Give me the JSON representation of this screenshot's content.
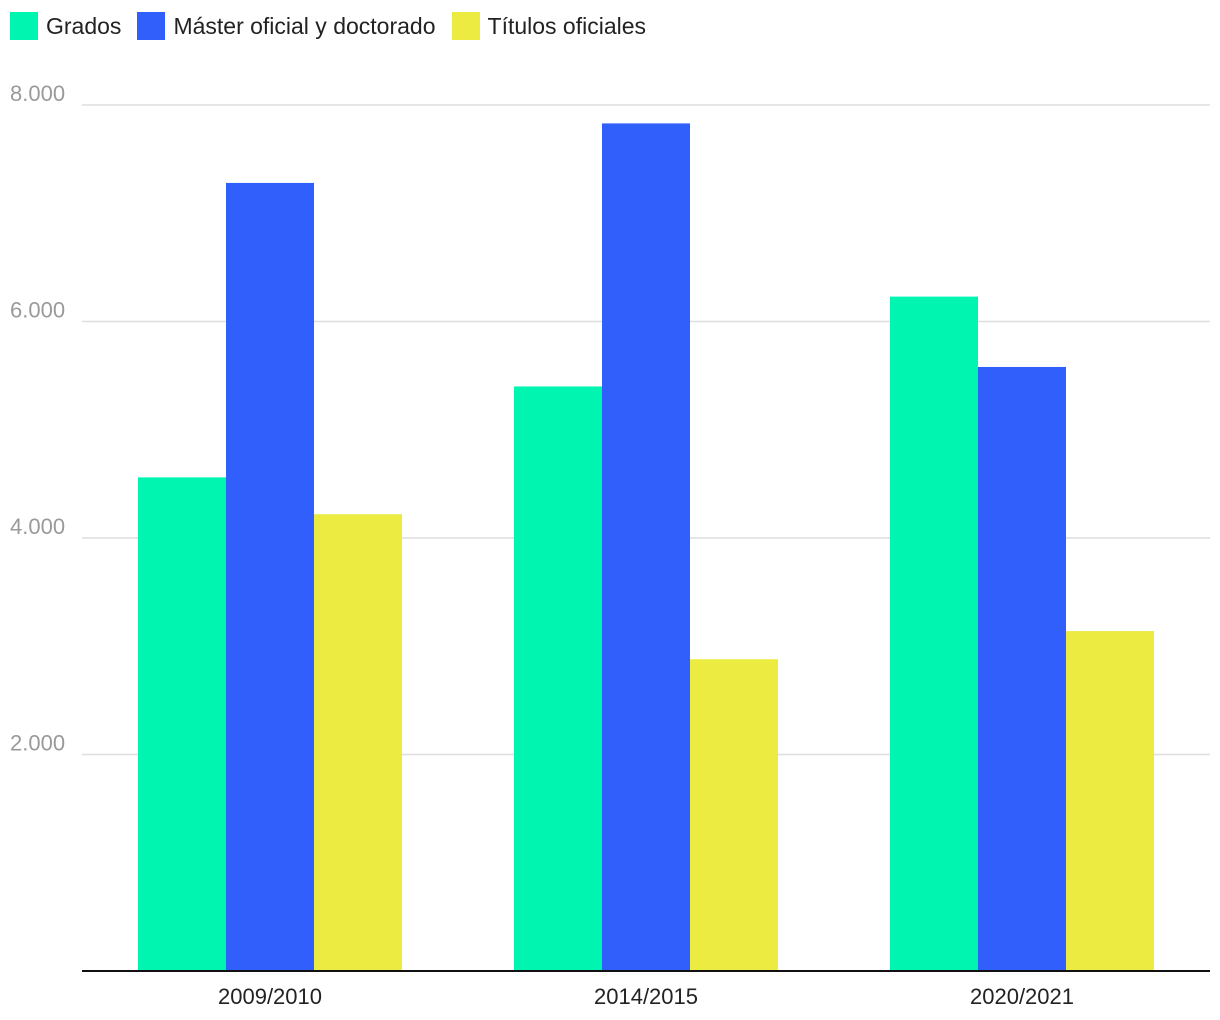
{
  "chart_data": {
    "type": "bar",
    "title": "",
    "xlabel": "",
    "ylabel": "",
    "categories": [
      "2009/2010",
      "2014/2015",
      "2020/2021"
    ],
    "series": [
      {
        "name": "Grados",
        "color": "#00f5b0",
        "values": [
          4560,
          5400,
          6230
        ]
      },
      {
        "name": "Máster oficial y doctorado",
        "color": "#315ffb",
        "values": [
          7280,
          7830,
          5580
        ]
      },
      {
        "name": "Títulos oficiales",
        "color": "#ebeb41",
        "values": [
          4220,
          2880,
          3140
        ]
      }
    ],
    "yticks": [
      {
        "value": 2000,
        "label": "2.000"
      },
      {
        "value": 4000,
        "label": "4.000"
      },
      {
        "value": 6000,
        "label": "6.000"
      },
      {
        "value": 8000,
        "label": "8.000"
      }
    ],
    "ylim": [
      0,
      8000
    ],
    "grid": true,
    "legend_position": "top-left"
  }
}
